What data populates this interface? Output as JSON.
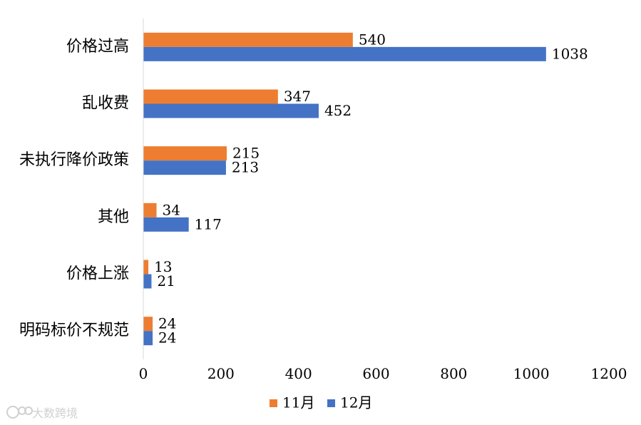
{
  "chart_data": {
    "type": "bar",
    "orientation": "horizontal",
    "categories": [
      "价格过高",
      "乱收费",
      "未执行降价政策",
      "其他",
      "价格上涨",
      "明码标价不规范"
    ],
    "series": [
      {
        "name": "11月",
        "color": "#ED7D31",
        "values": [
          540,
          347,
          215,
          34,
          13,
          24
        ]
      },
      {
        "name": "12月",
        "color": "#4472C4",
        "values": [
          1038,
          452,
          213,
          117,
          21,
          24
        ]
      }
    ],
    "xlim": [
      0,
      1200
    ],
    "xticks": [
      0,
      200,
      400,
      600,
      800,
      1000,
      1200
    ],
    "grid": false,
    "legend_position": "bottom",
    "title": "",
    "xlabel": "",
    "ylabel": ""
  },
  "watermark": "大数跨境"
}
